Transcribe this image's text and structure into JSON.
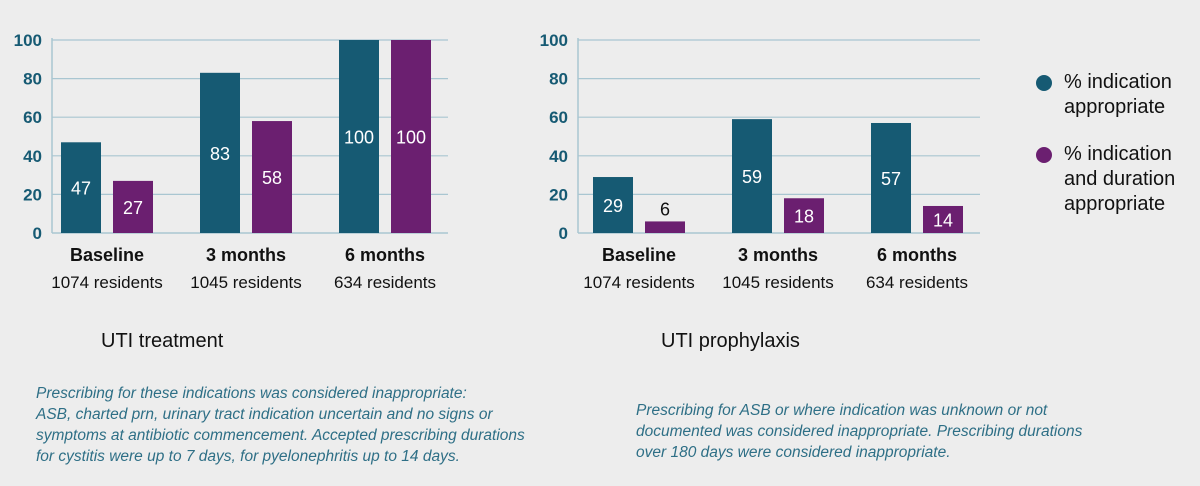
{
  "chart_data": [
    {
      "type": "bar",
      "title": "UTI treatment",
      "categories": [
        "Baseline",
        "3 months",
        "6 months"
      ],
      "category_sublabels": [
        "1074 residents",
        "1045 residents",
        "634 residents"
      ],
      "series": [
        {
          "name": "% indication appropriate",
          "values": [
            47,
            83,
            100
          ]
        },
        {
          "name": "% indication and duration appropriate",
          "values": [
            27,
            58,
            100
          ]
        }
      ],
      "ylim": [
        0,
        100
      ],
      "yticks": [
        0,
        20,
        40,
        60,
        80,
        100
      ],
      "grid": true
    },
    {
      "type": "bar",
      "title": "UTI prophylaxis",
      "categories": [
        "Baseline",
        "3 months",
        "6 months"
      ],
      "category_sublabels": [
        "1074 residents",
        "1045 residents",
        "634 residents"
      ],
      "series": [
        {
          "name": "% indication appropriate",
          "values": [
            29,
            59,
            57
          ]
        },
        {
          "name": "% indication and duration appropriate",
          "values": [
            6,
            18,
            14
          ]
        }
      ],
      "ylim": [
        0,
        100
      ],
      "yticks": [
        0,
        20,
        40,
        60,
        80,
        100
      ],
      "grid": true
    }
  ],
  "legend": {
    "items": [
      {
        "lines": [
          "% indication",
          "appropriate"
        ],
        "color": "#165a73"
      },
      {
        "lines": [
          "% indication",
          "and duration",
          "appropriate"
        ],
        "color": "#6b1f70"
      }
    ]
  },
  "colors": {
    "series1": "#165a73",
    "series2": "#6b1f70",
    "axis_text": "#165a73",
    "grid": "#a9c6d1",
    "note_text": "#2e6f86"
  },
  "notes": {
    "treatment": [
      "Prescribing for these indications was considered inappropriate:",
      "ASB, charted prn, urinary tract indication uncertain and no signs or",
      "symptoms at antibiotic commencement. Accepted prescribing durations",
      "for cystitis were up to 7 days, for pyelonephritis up to 14 days."
    ],
    "prophylaxis": [
      "Prescribing for ASB or where indication was unknown or not",
      "documented was considered inappropriate. Prescribing durations",
      "over 180 days were considered inappropriate."
    ]
  }
}
